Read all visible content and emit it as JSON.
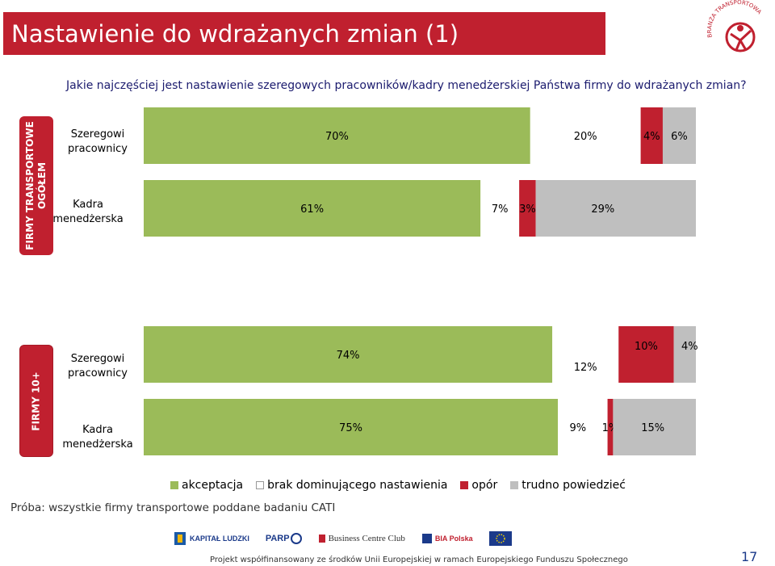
{
  "slide": {
    "title": "Nastawienie do wdrażanych zmian (1)",
    "question": "Jakie najczęściej jest nastawienie szeregowych pracowników/kadry menedżerskiej  Państwa firmy do wdrażanych zmian?",
    "note": "Próba: wszystkie firmy transportowe poddane badaniu CATI",
    "page_number": "17",
    "logo_text": "BRANŻA TRANSPORTOWA",
    "footer_text": "Projekt współfinansowany ze środków Unii Europejskiej w ramach Europejskiego Funduszu Społecznego"
  },
  "footer_logos": {
    "l1": "KAPITAŁ LUDZKI",
    "l2": "PARP",
    "l3": "Business Centre Club",
    "l4": "BIA Polska",
    "l5": ""
  },
  "colors": {
    "brand_red": "#c0202f",
    "akceptacja": "#9bbb59",
    "brak": "#ffffff",
    "opor": "#c0202f",
    "trudno": "#bfbfbf"
  },
  "chart_data": {
    "type": "bar",
    "orientation": "horizontal",
    "stacked": true,
    "xlim": [
      0,
      100
    ],
    "legend_position": "bottom",
    "series_names": [
      "akceptacja",
      "brak dominującego nastawienia",
      "opór",
      "trudno powiedzieć"
    ],
    "groups": [
      {
        "label": "FIRMY TRANSPORTOWE OGÓŁEM",
        "label_line1": "FIRMY TRANSPORTOWE",
        "label_line2": "OGÓŁEM",
        "rows": [
          {
            "category": "Szeregowi pracownicy",
            "values": [
              70,
              20,
              4,
              6
            ],
            "labels": [
              "70%",
              "20%",
              "4%",
              "6%"
            ]
          },
          {
            "category": "Kadra menedżerska",
            "values": [
              61,
              7,
              3,
              29
            ],
            "labels": [
              "61%",
              "7%",
              "3%",
              "29%"
            ]
          }
        ]
      },
      {
        "label": "FIRMY 10+",
        "label_line1": "FIRMY 10+",
        "label_line2": "",
        "rows": [
          {
            "category": "Szeregowi pracownicy",
            "values": [
              74,
              12,
              10,
              4
            ],
            "labels": [
              "74%",
              "12%",
              "10%",
              "4%"
            ]
          },
          {
            "category": "Kadra menedżerska",
            "values": [
              75,
              9,
              1,
              15
            ],
            "labels": [
              "75%",
              "9%",
              "1%",
              "15%"
            ]
          }
        ]
      }
    ]
  }
}
